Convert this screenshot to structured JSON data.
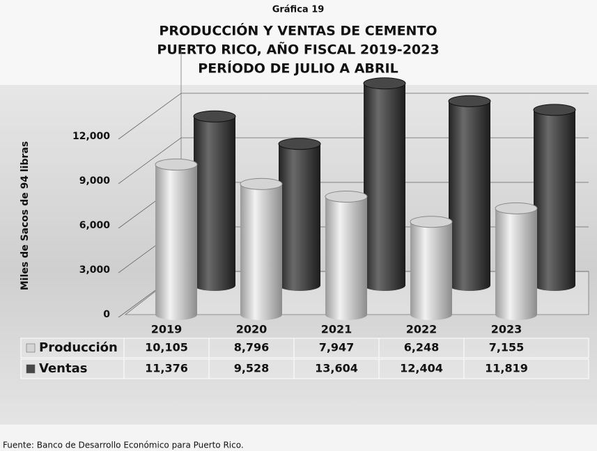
{
  "chart_data": {
    "type": "bar",
    "label": "Gráfica 19",
    "title_lines": [
      "PRODUCCIÓN Y VENTAS DE CEMENTO",
      "PUERTO RICO, AÑO FISCAL 2019-2023",
      "PERÍODO DE JULIO A ABRIL"
    ],
    "y_label": "Miles de Sacos de 94 libras",
    "categories": [
      "2019",
      "2020",
      "2021",
      "2022",
      "2023"
    ],
    "series": [
      {
        "name": "Producción",
        "color": "#d4d4d4",
        "values": [
          10105,
          8796,
          7947,
          6248,
          7155
        ],
        "value_labels": [
          "10,105",
          "8,796",
          "7,947",
          "6,248",
          "7,155"
        ]
      },
      {
        "name": "Ventas",
        "color": "#474747",
        "values": [
          11376,
          9528,
          13604,
          12404,
          11819
        ],
        "value_labels": [
          "11,376",
          "9,528",
          "13,604",
          "12,404",
          "11,819"
        ]
      }
    ],
    "ylim": [
      0,
      15000
    ],
    "yticks": [
      0,
      {
        "value": 3000,
        "label": "3,000"
      },
      {
        "value": 6000,
        "label": "6,000"
      },
      {
        "value": 9000,
        "label": "9,000"
      },
      {
        "value": 12000,
        "label": "12,000"
      }
    ],
    "grid": true,
    "source": "Fuente: Banco de Desarrollo Económico para Puerto Rico."
  }
}
